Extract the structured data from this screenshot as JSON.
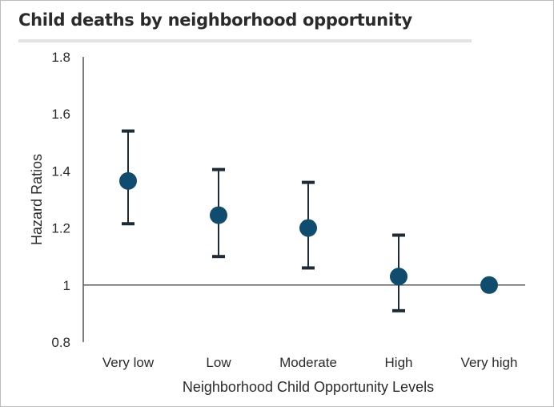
{
  "chart_data": {
    "type": "scatter",
    "title": "Child deaths by neighborhood opportunity",
    "xlabel": "Neighborhood Child Opportunity Levels",
    "ylabel": "Hazard Ratios",
    "categories": [
      "Very low",
      "Low",
      "Moderate",
      "High",
      "Very high"
    ],
    "series": [
      {
        "values": [
          1.365,
          1.245,
          1.2,
          1.03,
          1.0
        ],
        "ci_lower": [
          1.215,
          1.1,
          1.06,
          0.91,
          null
        ],
        "ci_upper": [
          1.54,
          1.405,
          1.36,
          1.175,
          null
        ]
      }
    ],
    "reference_line": 1,
    "ylim": [
      0.8,
      1.8
    ],
    "yticks": [
      "0.8",
      "1",
      "1.2",
      "1.4",
      "1.6",
      "1.8"
    ],
    "grid": false,
    "colors": {
      "marker": "#0f4c6e",
      "errorbar": "#1c2b36",
      "axis": "#555555"
    }
  }
}
